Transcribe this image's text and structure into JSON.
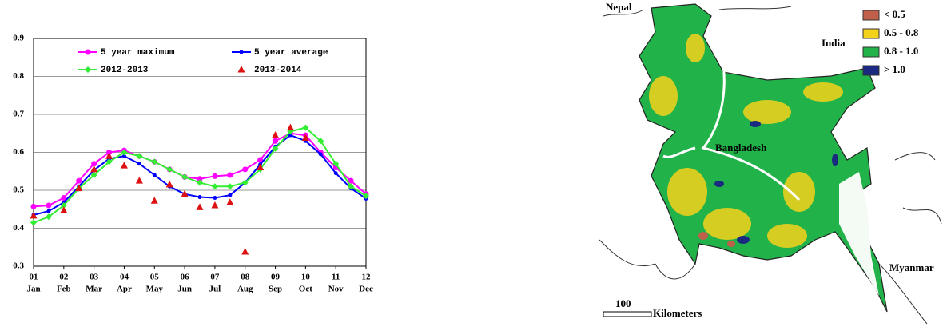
{
  "chart_data": {
    "type": "line",
    "x": [
      1,
      1.5,
      2,
      2.5,
      3,
      3.5,
      4,
      4.5,
      5,
      5.5,
      6,
      6.5,
      7,
      7.5,
      8,
      8.5,
      9,
      9.5,
      10,
      10.5,
      11,
      11.5,
      12
    ],
    "xlim": [
      1,
      12
    ],
    "xticks": [
      {
        "value": 1,
        "label": "01",
        "month": "Jan"
      },
      {
        "value": 2,
        "label": "02",
        "month": "Feb"
      },
      {
        "value": 3,
        "label": "03",
        "month": "Mar"
      },
      {
        "value": 4,
        "label": "04",
        "month": "Apr"
      },
      {
        "value": 5,
        "label": "05",
        "month": "May"
      },
      {
        "value": 6,
        "label": "06",
        "month": "Jun"
      },
      {
        "value": 7,
        "label": "07",
        "month": "Jul"
      },
      {
        "value": 8,
        "label": "08",
        "month": "Aug"
      },
      {
        "value": 9,
        "label": "09",
        "month": "Sep"
      },
      {
        "value": 10,
        "label": "10",
        "month": "Oct"
      },
      {
        "value": 11,
        "label": "11",
        "month": "Nov"
      },
      {
        "value": 12,
        "label": "12",
        "month": "Dec"
      }
    ],
    "ylim": [
      0.3,
      0.9
    ],
    "yticks": [
      0.3,
      0.4,
      0.5,
      0.6,
      0.7,
      0.8,
      0.9
    ],
    "grid": true,
    "series": [
      {
        "name": "5 year maximum",
        "color": "#ff00ff",
        "marker": "circle",
        "line": true,
        "values": [
          0.457,
          0.46,
          0.48,
          0.525,
          0.57,
          0.6,
          0.605,
          0.59,
          0.575,
          0.555,
          0.535,
          0.53,
          0.537,
          0.54,
          0.555,
          0.58,
          0.63,
          0.65,
          0.645,
          0.6,
          0.56,
          0.525,
          0.49
        ]
      },
      {
        "name": "5 year average",
        "color": "#0000ff",
        "marker": "dot",
        "line": true,
        "values": [
          0.435,
          0.445,
          0.468,
          0.51,
          0.553,
          0.583,
          0.59,
          0.57,
          0.54,
          0.51,
          0.49,
          0.482,
          0.48,
          0.487,
          0.52,
          0.568,
          0.615,
          0.645,
          0.63,
          0.595,
          0.545,
          0.505,
          0.478
        ]
      },
      {
        "name": "2012-2013",
        "color": "#33ee33",
        "marker": "diamond",
        "line": true,
        "values": [
          0.415,
          0.43,
          0.46,
          0.505,
          0.54,
          0.575,
          0.6,
          0.59,
          0.575,
          0.555,
          0.535,
          0.52,
          0.51,
          0.51,
          0.52,
          0.555,
          0.61,
          0.655,
          0.665,
          0.63,
          0.57,
          0.51,
          0.485
        ]
      },
      {
        "name": "2013-2014",
        "color": "#dd1111",
        "marker": "triangle",
        "line": false,
        "values": [
          0.433,
          null,
          0.447,
          0.505,
          0.555,
          0.59,
          0.565,
          0.525,
          0.472,
          0.515,
          0.49,
          0.455,
          0.46,
          0.468,
          0.338,
          0.56,
          0.645,
          0.665,
          0.638,
          null,
          null,
          null,
          null
        ]
      }
    ]
  },
  "map": {
    "places": [
      "Nepal",
      "India",
      "Bangladesh",
      "Myanmar"
    ],
    "legend": [
      {
        "label": "< 0.5",
        "color": "#c0604a"
      },
      {
        "label": "0.5 - 0.8",
        "color": "#f5d21a"
      },
      {
        "label": "0.8 - 1.0",
        "color": "#22b24a"
      },
      {
        "label": "> 1.0",
        "color": "#1a2a80"
      }
    ],
    "scale": {
      "distance": "100",
      "unit": "Kilometers"
    }
  }
}
